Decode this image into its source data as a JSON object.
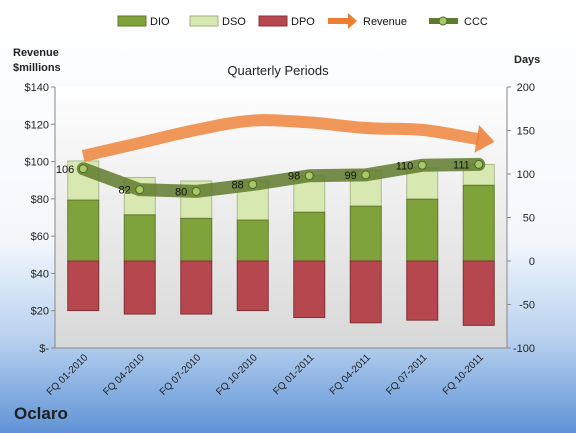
{
  "company": "Oclaro",
  "chart_data": {
    "type": "bar",
    "title": "Quarterly Periods",
    "left_axis_label": [
      "Revenue",
      "$millions"
    ],
    "right_axis_label": "Days",
    "categories": [
      "FQ 01-2010",
      "FQ 04-2010",
      "FQ 07-2010",
      "FQ 10-2010",
      "FQ 01-2011",
      "FQ 04-2011",
      "FQ 07-2011",
      "FQ 10-2011"
    ],
    "series": [
      {
        "name": "DIO",
        "axis": "right",
        "color": "#7fa33a",
        "values": [
          70,
          53,
          49,
          47,
          56,
          63,
          71,
          87
        ]
      },
      {
        "name": "DSO",
        "axis": "right",
        "color": "#d7e8b0",
        "values": [
          45,
          43,
          43,
          45,
          42,
          41,
          36,
          24
        ]
      },
      {
        "name": "DPO",
        "axis": "right",
        "color": "#b6474e",
        "values": [
          -57,
          -61,
          -61,
          -57,
          -65,
          -71,
          -68,
          -74
        ]
      },
      {
        "name": "Revenue",
        "axis": "left",
        "color": "#ed7d31",
        "values": [
          103,
          110,
          117,
          122,
          121,
          118,
          117,
          112
        ]
      },
      {
        "name": "CCC",
        "axis": "right",
        "color": "#5f7a2e",
        "values": [
          106,
          82,
          80,
          88,
          98,
          99,
          110,
          111
        ]
      }
    ],
    "ccc_labels": [
      "106",
      "82",
      "80",
      "88",
      "98",
      "99",
      "110",
      "111"
    ],
    "left_axis": {
      "min": 0,
      "max": 140,
      "ticks": [
        "$-",
        "$20",
        "$40",
        "$60",
        "$80",
        "$100",
        "$120",
        "$140"
      ]
    },
    "right_axis": {
      "min": -100,
      "max": 200,
      "ticks": [
        "-100",
        "-50",
        "0",
        "50",
        "100",
        "150",
        "200"
      ]
    },
    "legend": {
      "position": "top",
      "items": [
        "DIO",
        "DSO",
        "DPO",
        "Revenue",
        "CCC"
      ]
    },
    "grid": false
  }
}
